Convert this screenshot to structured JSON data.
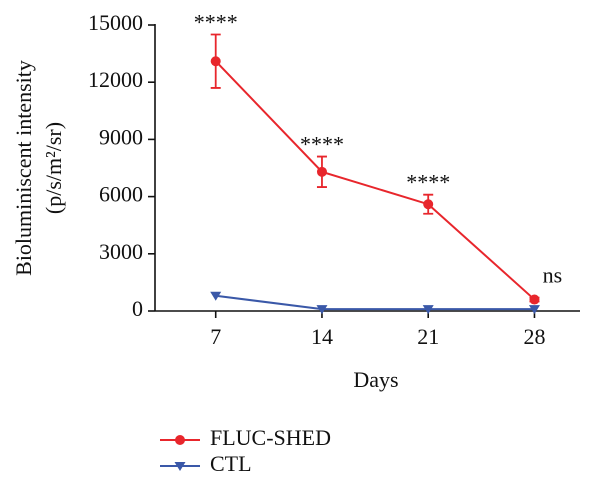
{
  "chart_data": {
    "type": "line",
    "x_label": "Days",
    "y_label": [
      "Bioluminiscent intensity",
      "(p/s/m²/sr)"
    ],
    "x": [
      7,
      14,
      21,
      28
    ],
    "series": [
      {
        "name": "FLUC-SHED",
        "color": "#e8262c",
        "marker": "circle",
        "values": [
          13100,
          7300,
          5600,
          600
        ],
        "errors": [
          1400,
          800,
          500,
          100
        ]
      },
      {
        "name": "CTL",
        "color": "#3a58a8",
        "marker": "triangle-down",
        "values": [
          800,
          100,
          100,
          100
        ]
      }
    ],
    "annotations": [
      "****",
      "****",
      "****",
      "ns"
    ],
    "xlim": [
      3,
      31
    ],
    "xticks": [
      7,
      14,
      21,
      28
    ],
    "ylim": [
      0,
      15000
    ],
    "yticks": [
      0,
      3000,
      6000,
      9000,
      12000,
      15000
    ],
    "legend": "bottom"
  }
}
